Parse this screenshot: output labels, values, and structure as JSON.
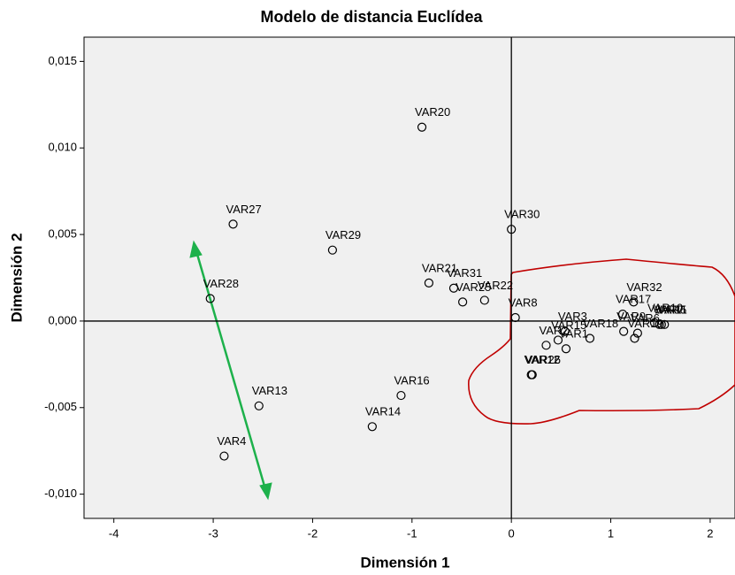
{
  "chart_data": {
    "type": "scatter",
    "title": "Modelo de distancia Euclídea",
    "x_label": "Dimensión 1",
    "y_label": "Dimensión 2",
    "xlim": [
      -4.3,
      2.25
    ],
    "ylim": [
      -0.0114,
      0.0164
    ],
    "xticks": [
      -4,
      -3,
      -2,
      -1,
      0,
      1,
      2
    ],
    "yticks": [
      {
        "value": -0.01,
        "label": "-0,010"
      },
      {
        "value": -0.005,
        "label": "-0,005"
      },
      {
        "value": 0,
        "label": "0,000"
      },
      {
        "value": 0.005,
        "label": "0,005"
      },
      {
        "value": 0.01,
        "label": "0,010"
      },
      {
        "value": 0.015,
        "label": "0,015"
      }
    ],
    "reference_lines": {
      "x": 0,
      "y": 0
    },
    "points": [
      {
        "label": "VAR20",
        "x": -0.9,
        "y": 0.0112
      },
      {
        "label": "VAR27",
        "x": -2.8,
        "y": 0.0056
      },
      {
        "label": "VAR29",
        "x": -1.8,
        "y": 0.0041
      },
      {
        "label": "VAR30",
        "x": 0.0,
        "y": 0.0053
      },
      {
        "label": "VAR28",
        "x": -3.03,
        "y": 0.0013
      },
      {
        "label": "VAR21",
        "x": -0.83,
        "y": 0.0022
      },
      {
        "label": "VAR31",
        "x": -0.58,
        "y": 0.0019
      },
      {
        "label": "VAR25",
        "x": -0.49,
        "y": 0.0011
      },
      {
        "label": "VAR22",
        "x": -0.27,
        "y": 0.0012
      },
      {
        "label": "VAR8",
        "x": 0.04,
        "y": 0.0002
      },
      {
        "label": "VAR3",
        "x": 0.54,
        "y": -0.0006
      },
      {
        "label": "VAR2",
        "x": 0.35,
        "y": -0.0014
      },
      {
        "label": "VAR15",
        "x": 0.47,
        "y": -0.0011
      },
      {
        "label": "VAR1",
        "x": 0.55,
        "y": -0.0016
      },
      {
        "label": "VAR18",
        "x": 0.79,
        "y": -0.001
      },
      {
        "label": "VAR17",
        "x": 1.12,
        "y": 0.0004
      },
      {
        "label": "VAR32",
        "x": 1.23,
        "y": 0.0011
      },
      {
        "label": "VAR9",
        "x": 1.13,
        "y": -0.0006
      },
      {
        "label": "VAR19",
        "x": 1.24,
        "y": -0.001
      },
      {
        "label": "VAR6",
        "x": 1.27,
        "y": -0.0007
      },
      {
        "label": "VAR10",
        "x": 1.44,
        "y": -0.0001
      },
      {
        "label": "VAR11",
        "x": 1.49,
        "y": -0.0002
      },
      {
        "label": "VAR7",
        "x": 1.51,
        "y": -0.0002
      },
      {
        "label": "VAR5",
        "x": 1.54,
        "y": -0.0002
      },
      {
        "label": "VAR12",
        "x": 0.2,
        "y": -0.0031
      },
      {
        "label": "VAR26",
        "x": 0.21,
        "y": -0.0031
      },
      {
        "label": "VAR14",
        "x": -1.4,
        "y": -0.0061
      },
      {
        "label": "VAR16",
        "x": -1.11,
        "y": -0.0043
      },
      {
        "label": "VAR13",
        "x": -2.54,
        "y": -0.0049
      },
      {
        "label": "VAR4",
        "x": -2.89,
        "y": -0.0078
      }
    ]
  }
}
